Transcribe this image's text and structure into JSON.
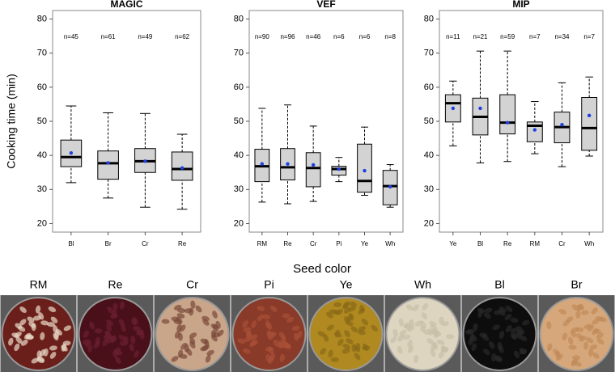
{
  "chart_data": [
    {
      "type": "box",
      "title": "MAGIC",
      "y_label": "Cooking time (min)",
      "categories": [
        "Bl",
        "Br",
        "Cr",
        "Re"
      ],
      "n_labels": [
        "n=45",
        "n=61",
        "n=49",
        "n=62"
      ],
      "ylim": [
        17.5,
        82.5
      ],
      "yticks": [
        20,
        30,
        40,
        50,
        60,
        70,
        80
      ],
      "box_color": "#d3d3d3",
      "mean_color": "#1f3fe0",
      "boxes": [
        {
          "low": 32,
          "q1": 36.7,
          "median": 39.5,
          "q3": 44.5,
          "high": 54.5,
          "mean": 40.7
        },
        {
          "low": 27.5,
          "q1": 33,
          "median": 37.7,
          "q3": 41.3,
          "high": 52.5,
          "mean": 37.8
        },
        {
          "low": 24.8,
          "q1": 35,
          "median": 38.3,
          "q3": 42,
          "high": 52.3,
          "mean": 38.3
        },
        {
          "low": 24.2,
          "q1": 32.7,
          "median": 36,
          "q3": 41,
          "high": 46.2,
          "mean": 36.3
        }
      ]
    },
    {
      "type": "box",
      "title": "VEF",
      "x_label": "Seed color",
      "categories": [
        "RM",
        "Re",
        "Cr",
        "Pi",
        "Ye",
        "Wh"
      ],
      "n_labels": [
        "n=90",
        "n=96",
        "n=46",
        "n=6",
        "n=6",
        "n=8"
      ],
      "ylim": [
        17.5,
        82.5
      ],
      "yticks": [
        20,
        30,
        40,
        50,
        60,
        70,
        80
      ],
      "box_color": "#d3d3d3",
      "mean_color": "#1f3fe0",
      "boxes": [
        {
          "low": 26.3,
          "q1": 32.3,
          "median": 36.8,
          "q3": 41.8,
          "high": 53.8,
          "mean": 37.5
        },
        {
          "low": 25.8,
          "q1": 32.8,
          "median": 36.5,
          "q3": 42,
          "high": 54.8,
          "mean": 37.5
        },
        {
          "low": 26.5,
          "q1": 30.8,
          "median": 36.3,
          "q3": 40.8,
          "high": 48.6,
          "mean": 37.2
        },
        {
          "low": 32.3,
          "q1": 34.2,
          "median": 36,
          "q3": 36.8,
          "high": 39.4,
          "mean": 36
        },
        {
          "low": 28.3,
          "q1": 29.2,
          "median": 32.5,
          "q3": 43.3,
          "high": 48.3,
          "mean": 35.5
        },
        {
          "low": 24.8,
          "q1": 25.5,
          "median": 31,
          "q3": 35.6,
          "high": 37.3,
          "mean": 30.8
        }
      ]
    },
    {
      "type": "box",
      "title": "MIP",
      "categories": [
        "Ye",
        "Bl",
        "Re",
        "RM",
        "Cr",
        "Wh"
      ],
      "n_labels": [
        "n=11",
        "n=21",
        "n=59",
        "n=7",
        "n=34",
        "n=7"
      ],
      "ylim": [
        17.5,
        82.5
      ],
      "yticks": [
        20,
        30,
        40,
        50,
        60,
        70,
        80
      ],
      "box_color": "#d3d3d3",
      "mean_color": "#1f3fe0",
      "boxes": [
        {
          "low": 42.8,
          "q1": 49.8,
          "median": 55.3,
          "q3": 57.8,
          "high": 61.8,
          "mean": 53.8
        },
        {
          "low": 37.8,
          "q1": 46,
          "median": 51.3,
          "q3": 56.8,
          "high": 70.6,
          "mean": 53.8
        },
        {
          "low": 38.2,
          "q1": 46.3,
          "median": 49.6,
          "q3": 57.8,
          "high": 70.6,
          "mean": 49.6
        },
        {
          "low": 40.5,
          "q1": 44,
          "median": 48.7,
          "q3": 49.8,
          "high": 55.8,
          "mean": 47.5
        },
        {
          "low": 36.7,
          "q1": 43.7,
          "median": 48.3,
          "q3": 52.7,
          "high": 61.3,
          "mean": 49
        },
        {
          "low": 39.8,
          "q1": 41.5,
          "median": 48,
          "q3": 57,
          "high": 63,
          "mean": 51.7
        }
      ]
    }
  ],
  "photos": {
    "labels": [
      "RM",
      "Re",
      "Cr",
      "Pi",
      "Ye",
      "Wh",
      "Bl",
      "Br"
    ]
  }
}
